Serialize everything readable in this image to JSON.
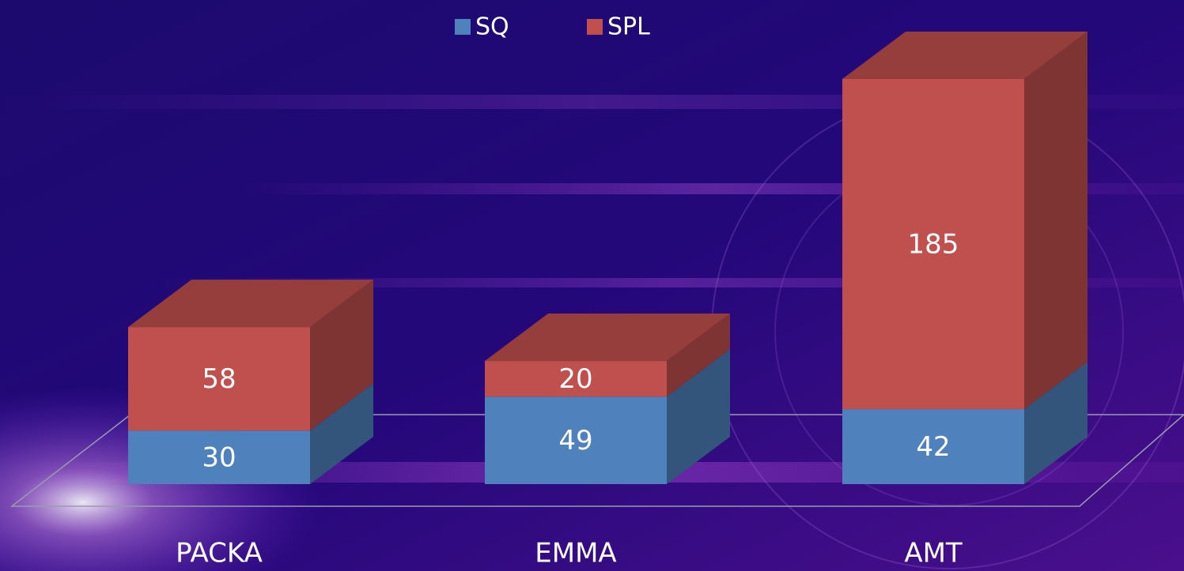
{
  "chart_data": {
    "type": "bar3d_stacked",
    "categories": [
      "PACKA",
      "EMMA",
      "AMT"
    ],
    "series": [
      {
        "name": "SQ",
        "color": "#4f81bd",
        "values": [
          30,
          49,
          42
        ]
      },
      {
        "name": "SPL",
        "color": "#c0504d",
        "values": [
          58,
          20,
          185
        ]
      }
    ]
  }
}
